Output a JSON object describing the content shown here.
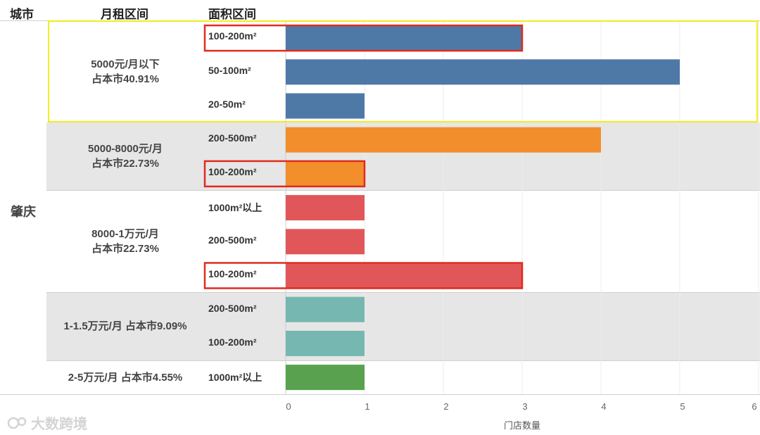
{
  "header": {
    "city": "城市",
    "rent": "月租区间",
    "area": "面积区间"
  },
  "city": "肇庆",
  "groups": [
    {
      "line1": "5000元/月以下",
      "line2": "占本市40.91%",
      "color": "#4e79a7"
    },
    {
      "line1": "5000-8000元/月",
      "line2": "占本市22.73%",
      "color": "#f28e2b"
    },
    {
      "line1": "8000-1万元/月",
      "line2": "占本市22.73%",
      "color": "#e15759"
    },
    {
      "line1": "1-1.5万元/月  占本市9.09%",
      "line2": "",
      "color": "#76b7b2"
    },
    {
      "line1": "2-5万元/月  占本市4.55%",
      "line2": "",
      "color": "#59a14f"
    }
  ],
  "highlight_colors": {
    "group": "#f2ec1c",
    "bar": "#e02b20"
  },
  "watermark": {
    "text": "大数跨境"
  },
  "chart_data": {
    "type": "bar",
    "orientation": "horizontal",
    "xlabel": "门店数量",
    "xlim": [
      0,
      6
    ],
    "xticks": [
      0,
      1,
      2,
      3,
      4,
      5,
      6
    ],
    "rows": [
      {
        "group": 0,
        "label": "100-200m²",
        "value": 3,
        "highlight": true
      },
      {
        "group": 0,
        "label": "50-100m²",
        "value": 5,
        "highlight": false
      },
      {
        "group": 0,
        "label": "20-50m²",
        "value": 1,
        "highlight": false
      },
      {
        "group": 1,
        "label": "200-500m²",
        "value": 4,
        "highlight": false
      },
      {
        "group": 1,
        "label": "100-200m²",
        "value": 1,
        "highlight": true
      },
      {
        "group": 2,
        "label": "1000m²以上",
        "value": 1,
        "highlight": false
      },
      {
        "group": 2,
        "label": "200-500m²",
        "value": 1,
        "highlight": false
      },
      {
        "group": 2,
        "label": "100-200m²",
        "value": 3,
        "highlight": true
      },
      {
        "group": 3,
        "label": "200-500m²",
        "value": 1,
        "highlight": false
      },
      {
        "group": 3,
        "label": "100-200m²",
        "value": 1,
        "highlight": false
      },
      {
        "group": 4,
        "label": "1000m²以上",
        "value": 1,
        "highlight": false
      }
    ]
  }
}
